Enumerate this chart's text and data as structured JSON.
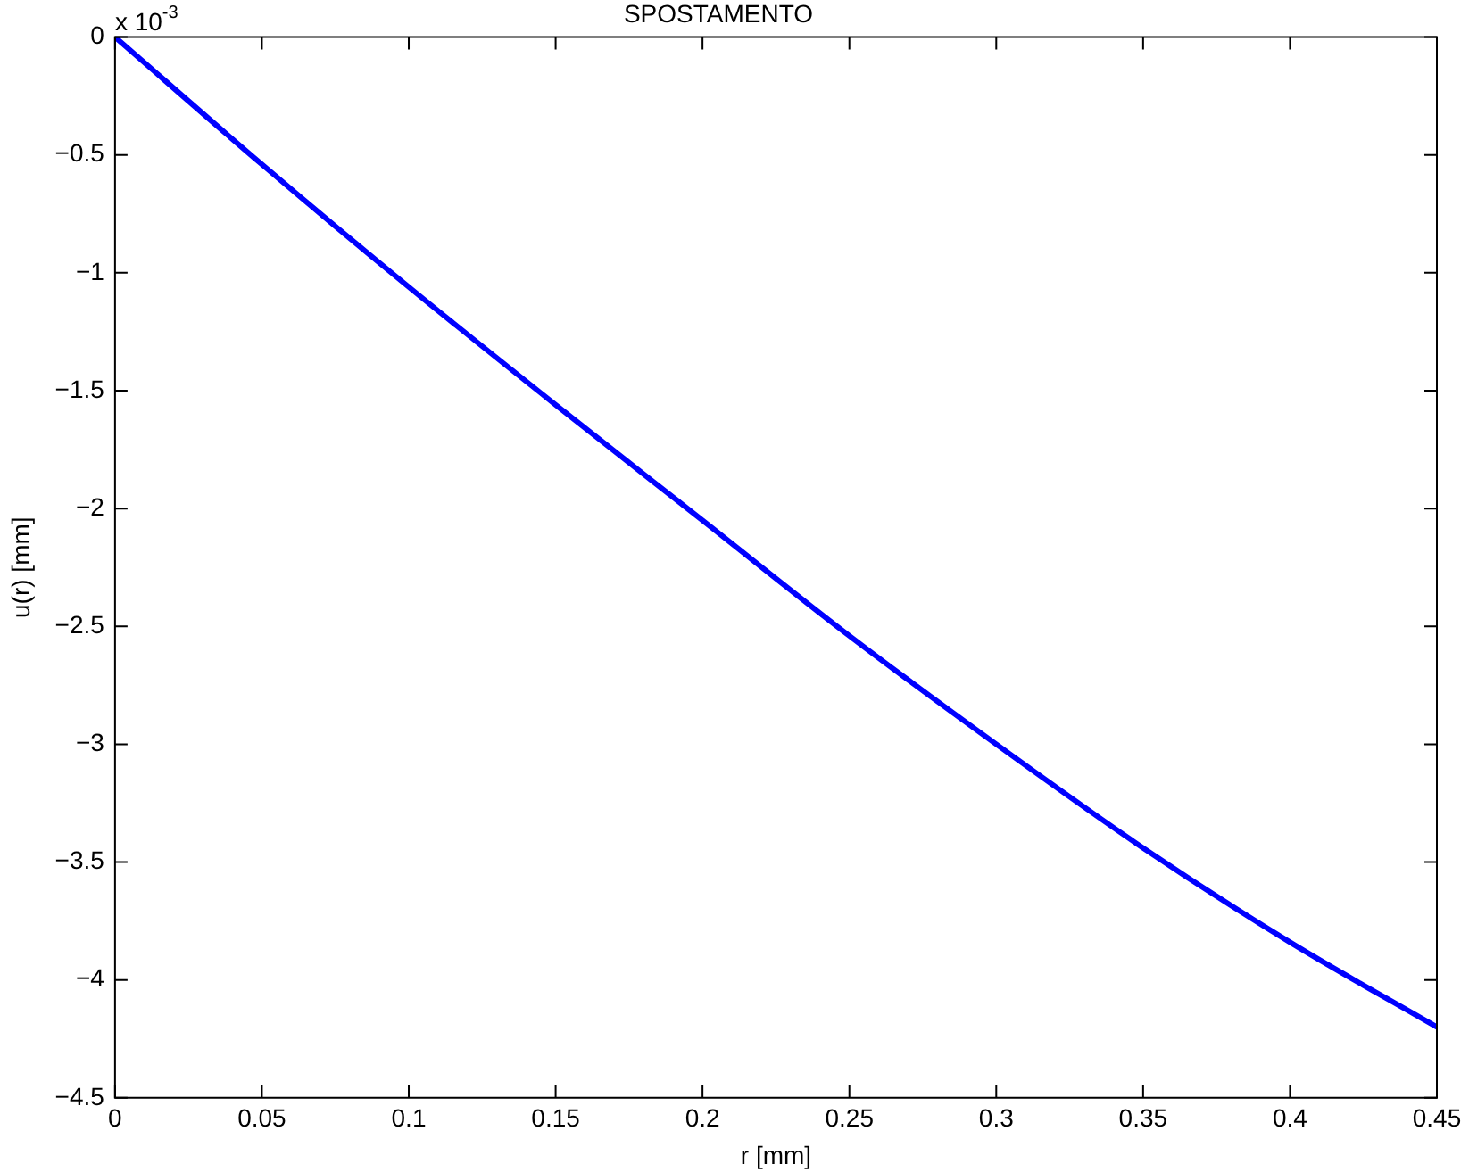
{
  "chart_data": {
    "type": "line",
    "title": "SPOSTAMENTO",
    "xlabel": "r [mm]",
    "ylabel": "u(r) [mm]",
    "annotations": [
      "x 10$^{-3}$"
    ],
    "x": [
      0,
      0.05,
      0.1,
      0.15,
      0.2,
      0.25,
      0.3,
      0.35,
      0.4,
      0.45
    ],
    "series": [
      {
        "color": "#0000ff",
        "values": [
          0,
          -0.54,
          -1.06,
          -1.56,
          -2.05,
          -2.54,
          -3.0,
          -3.44,
          -3.84,
          -4.2
        ]
      }
    ],
    "xlim": [
      0,
      0.45
    ],
    "xticks": [
      0,
      0.05,
      0.1,
      0.15,
      0.2,
      0.25,
      0.3,
      0.35,
      0.4,
      0.45
    ],
    "ylim": [
      -4.5,
      0
    ],
    "yticks": [
      -4.5,
      -4,
      -3.5,
      -3,
      -2.5,
      -2,
      -1.5,
      -1,
      -0.5,
      0
    ],
    "grid": false,
    "legend": false,
    "marker": "none",
    "line_style": "solid"
  }
}
